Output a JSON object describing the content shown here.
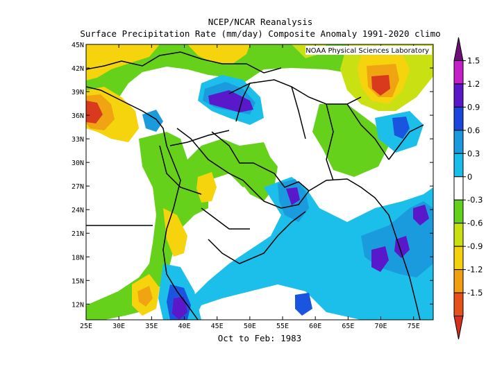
{
  "titles": {
    "line1": "NCEP/NCAR Reanalysis",
    "line2": "Surface Precipitation Rate (mm/day) Composite Anomaly 1991-2020 climo",
    "subtitle": "Oct to Feb: 1983"
  },
  "credit": "NOAA Physical Sciences Laboratory",
  "map": {
    "lon_range": [
      25,
      78
    ],
    "lat_range": [
      10,
      45
    ],
    "lon_ticks": [
      "25E",
      "30E",
      "35E",
      "40E",
      "45E",
      "50E",
      "55E",
      "60E",
      "65E",
      "70E",
      "75E"
    ],
    "lat_ticks": [
      "45N",
      "42N",
      "39N",
      "36N",
      "33N",
      "30N",
      "27N",
      "24N",
      "21N",
      "18N",
      "15N",
      "12N"
    ]
  },
  "colorbar": {
    "labels": [
      "1.5",
      "1.2",
      "0.9",
      "0.6",
      "0.3",
      "0",
      "-0.3",
      "-0.6",
      "-0.9",
      "-1.2",
      "-1.5"
    ],
    "colors": [
      "#6e0f78",
      "#c320c8",
      "#5a17c8",
      "#1b46dd",
      "#1a9ade",
      "#18bde9",
      "#ffffff",
      "#63d11a",
      "#c8e00f",
      "#f3d10c",
      "#f19e11",
      "#e6501a",
      "#d4301c"
    ]
  },
  "palette": {
    "dry_strong": "#d93a1e",
    "dry_mod": "#f1a412",
    "dry_light": "#f5d40d",
    "dry_slight": "#c9e112",
    "dry_min": "#66d11b",
    "wet_min": "#1cbfe9",
    "wet_light": "#1a9bdd",
    "wet_mod": "#1a55df",
    "wet_strong": "#5a18cb"
  }
}
